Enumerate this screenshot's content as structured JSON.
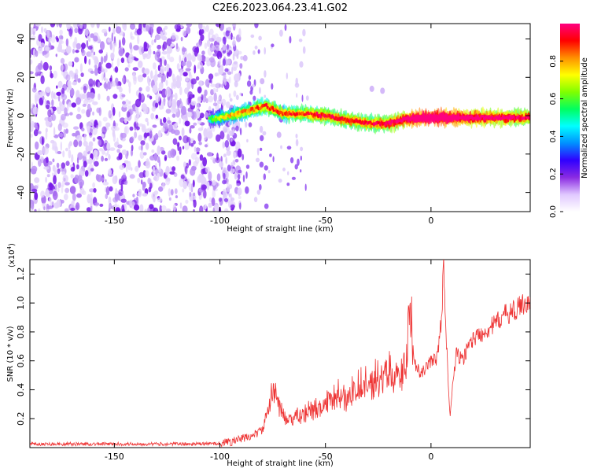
{
  "title": "C2E6.2023.064.23.41.G02",
  "chart_data": [
    {
      "type": "heatmap",
      "xlabel": "Height of straight line (km)",
      "ylabel": "Frequency (Hz)",
      "xlim": [
        -190,
        47
      ],
      "ylim": [
        -50,
        48
      ],
      "x_ticks": [
        -150,
        -100,
        -50,
        0
      ],
      "y_ticks": [
        -40,
        -20,
        0,
        20,
        40
      ],
      "colorbar": {
        "label": "Normalized spectral amplitude",
        "range": [
          0,
          1
        ],
        "ticks": [
          "0.0",
          "0.2",
          "0.4",
          "0.6",
          "0.8"
        ],
        "colors": [
          "#ffffff",
          "#e0c8ff",
          "#8a2be2",
          "#3000ff",
          "#0090ff",
          "#00ffff",
          "#00ff60",
          "#80ff00",
          "#ffff00",
          "#ff9000",
          "#ff0000",
          "#ff0080"
        ]
      },
      "noise_region": {
        "x_range": [
          -190,
          -98
        ],
        "amplitude": [
          0.05,
          0.2
        ]
      },
      "signal_ridge": [
        {
          "x": -105,
          "freq": -2,
          "amplitude": 0.22
        },
        {
          "x": -95,
          "freq": 0,
          "amplitude": 0.4
        },
        {
          "x": -85,
          "freq": 3,
          "amplitude": 0.45
        },
        {
          "x": -78,
          "freq": 5,
          "amplitude": 0.5
        },
        {
          "x": -70,
          "freq": 1,
          "amplitude": 0.5
        },
        {
          "x": -60,
          "freq": 1,
          "amplitude": 0.52
        },
        {
          "x": -50,
          "freq": 0,
          "amplitude": 0.55
        },
        {
          "x": -42,
          "freq": -2,
          "amplitude": 0.55
        },
        {
          "x": -35,
          "freq": -3,
          "amplitude": 0.55
        },
        {
          "x": -28,
          "freq": -4,
          "amplitude": 0.55
        },
        {
          "x": -20,
          "freq": -4,
          "amplitude": 0.6
        },
        {
          "x": -12,
          "freq": -2,
          "amplitude": 0.7
        },
        {
          "x": -5,
          "freq": -1,
          "amplitude": 0.8
        },
        {
          "x": 0,
          "freq": -1,
          "amplitude": 0.85
        },
        {
          "x": 5,
          "freq": -1,
          "amplitude": 0.82
        },
        {
          "x": 12,
          "freq": -1,
          "amplitude": 0.75
        },
        {
          "x": 20,
          "freq": -1,
          "amplitude": 0.7
        },
        {
          "x": 30,
          "freq": -1,
          "amplitude": 0.65
        },
        {
          "x": 40,
          "freq": -1,
          "amplitude": 0.62
        },
        {
          "x": 47,
          "freq": -1,
          "amplitude": 0.6
        }
      ]
    },
    {
      "type": "line",
      "xlabel": "Height of straight line (km)",
      "ylabel": "SNR (10 * v/v)",
      "y_exponent_label": "(x10",
      "y_exponent": "4",
      "xlim": [
        -190,
        47
      ],
      "ylim": [
        0,
        1.3
      ],
      "x_ticks": [
        -150,
        -100,
        -50,
        0
      ],
      "y_ticks": [
        0.2,
        0.4,
        0.6,
        0.8,
        1.0,
        1.2
      ],
      "color": "#ee3333",
      "series": [
        {
          "x": [
            -190,
            -160,
            -130,
            -110,
            -100,
            -95,
            -90,
            -85,
            -80,
            -76,
            -75,
            -72,
            -68,
            -65,
            -60,
            -55,
            -50,
            -46,
            -40,
            -35,
            -30,
            -25,
            -20,
            -15,
            -12,
            -11,
            -10,
            -8,
            -5,
            0,
            3,
            5,
            6,
            7,
            8,
            9,
            10,
            12,
            15,
            18,
            20,
            25,
            30,
            35,
            40,
            44,
            47
          ],
          "y": [
            0.025,
            0.025,
            0.025,
            0.025,
            0.03,
            0.04,
            0.06,
            0.08,
            0.12,
            0.3,
            0.45,
            0.28,
            0.18,
            0.2,
            0.22,
            0.25,
            0.28,
            0.35,
            0.32,
            0.4,
            0.42,
            0.45,
            0.5,
            0.48,
            0.55,
            0.75,
            0.88,
            0.6,
            0.5,
            0.6,
            0.62,
            0.9,
            1.27,
            0.85,
            0.5,
            0.2,
            0.4,
            0.65,
            0.6,
            0.72,
            0.75,
            0.8,
            0.85,
            0.92,
            0.95,
            1.0,
            1.0
          ]
        }
      ]
    }
  ]
}
